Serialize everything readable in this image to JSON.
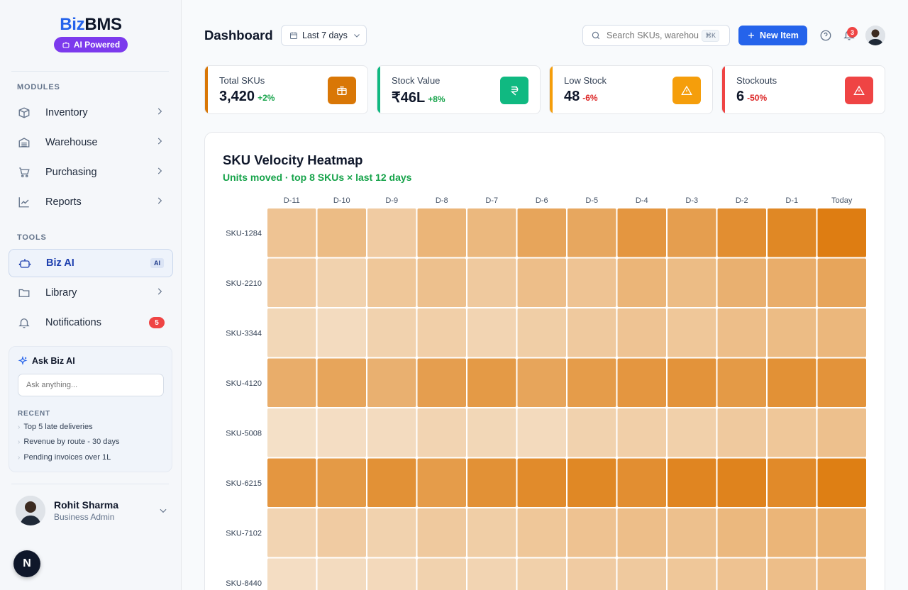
{
  "sidebar": {
    "brand_part1": "Biz",
    "brand_part2": "BMS",
    "ai_badge": "AI Powered",
    "modules_label": "MODULES",
    "modules": [
      {
        "label": "Inventory",
        "icon": "box-icon"
      },
      {
        "label": "Warehouse",
        "icon": "warehouse-icon"
      },
      {
        "label": "Purchasing",
        "icon": "cart-icon"
      },
      {
        "label": "Reports",
        "icon": "chart-line-icon"
      }
    ],
    "tools_label": "TOOLS",
    "tools": [
      {
        "label": "Biz AI",
        "icon": "robot-icon",
        "tag": "AI",
        "active": true
      },
      {
        "label": "Library",
        "icon": "folder-icon"
      },
      {
        "label": "Notifications",
        "icon": "bell-icon",
        "badge": "5"
      }
    ],
    "ask": {
      "title": "Ask Biz AI",
      "placeholder": "Ask anything...",
      "recent_label": "RECENT",
      "recent": [
        "Top 5 late deliveries",
        "Revenue by route - 30 days",
        "Pending invoices over 1L"
      ]
    },
    "user": {
      "name": "Rohit Sharma",
      "role": "Business Admin"
    },
    "floating_button": "N"
  },
  "header": {
    "title": "Dashboard",
    "date_range": "Last 7 days",
    "search_placeholder": "Search SKUs, warehouses",
    "search_shortcut": "⌘K",
    "new_button": "New Item",
    "notif_count": "3"
  },
  "kpis": [
    {
      "label": "Total SKUs",
      "value": "3,420",
      "change": "+2%",
      "trend": "up",
      "color": "#d97706",
      "icon": "box-icon"
    },
    {
      "label": "Stock Value",
      "value": "₹46L",
      "change": "+8%",
      "trend": "up",
      "color": "#10b981",
      "icon": "rupee-icon"
    },
    {
      "label": "Low Stock",
      "value": "48",
      "change": "-6%",
      "trend": "down",
      "color": "#f59e0b",
      "icon": "warning-icon"
    },
    {
      "label": "Stockouts",
      "value": "6",
      "change": "-50%",
      "trend": "down",
      "color": "#ef4444",
      "icon": "alert-icon"
    }
  ],
  "heatmap": {
    "title": "SKU Velocity Heatmap",
    "subtitle": "Units moved · top 8 SKUs × last 12 days"
  },
  "chart_data": {
    "type": "heatmap",
    "title": "SKU Velocity Heatmap",
    "subtitle": "Units moved · top 8 SKUs × last 12 days",
    "x": [
      "D-11",
      "D-10",
      "D-9",
      "D-8",
      "D-7",
      "D-6",
      "D-5",
      "D-4",
      "D-3",
      "D-2",
      "D-1",
      "Today"
    ],
    "y": [
      "SKU-1284",
      "SKU-2210",
      "SKU-3344",
      "SKU-4120",
      "SKU-5008",
      "SKU-6215",
      "SKU-7102",
      "SKU-8440"
    ],
    "values": [
      [
        0.35,
        0.42,
        0.28,
        0.48,
        0.45,
        0.62,
        0.6,
        0.75,
        0.68,
        0.82,
        0.88,
        0.97
      ],
      [
        0.28,
        0.22,
        0.32,
        0.38,
        0.3,
        0.4,
        0.35,
        0.48,
        0.42,
        0.52,
        0.55,
        0.62
      ],
      [
        0.18,
        0.14,
        0.22,
        0.25,
        0.2,
        0.26,
        0.3,
        0.35,
        0.32,
        0.4,
        0.42,
        0.46
      ],
      [
        0.55,
        0.62,
        0.52,
        0.68,
        0.72,
        0.62,
        0.7,
        0.75,
        0.78,
        0.72,
        0.8,
        0.78
      ],
      [
        0.1,
        0.12,
        0.14,
        0.2,
        0.18,
        0.15,
        0.22,
        0.25,
        0.24,
        0.3,
        0.32,
        0.38
      ],
      [
        0.75,
        0.72,
        0.8,
        0.7,
        0.8,
        0.85,
        0.88,
        0.82,
        0.9,
        0.92,
        0.86,
        0.96
      ],
      [
        0.2,
        0.28,
        0.22,
        0.3,
        0.26,
        0.32,
        0.36,
        0.4,
        0.38,
        0.45,
        0.48,
        0.5
      ],
      [
        0.12,
        0.14,
        0.16,
        0.22,
        0.2,
        0.24,
        0.28,
        0.3,
        0.32,
        0.36,
        0.4,
        0.44
      ]
    ],
    "color_low": "#f7ebdc",
    "color_high": "#dd7a0c"
  }
}
